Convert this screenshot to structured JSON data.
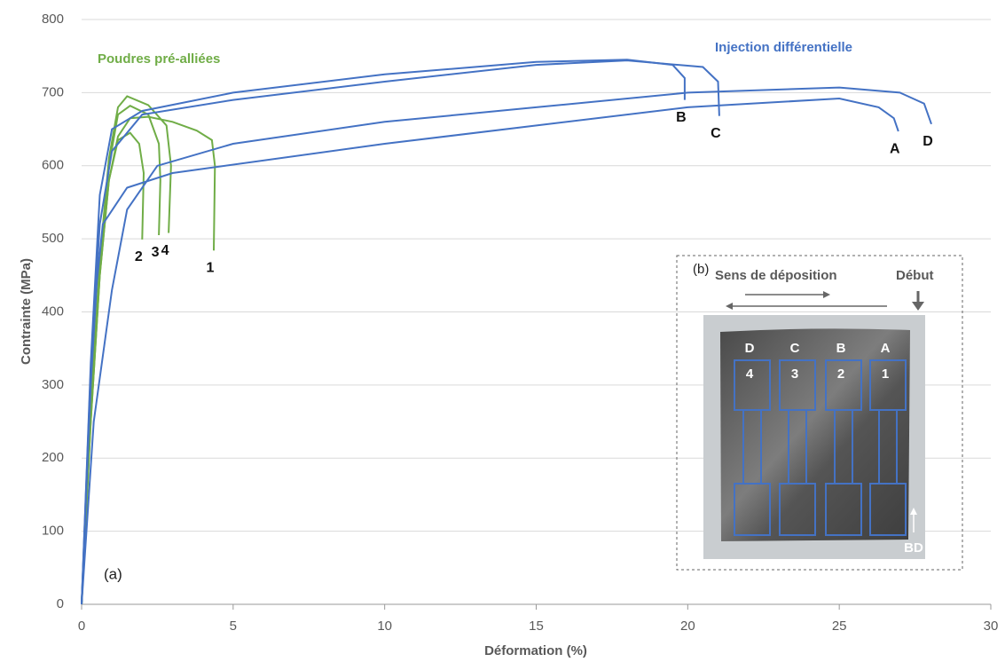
{
  "chart_data": {
    "type": "line",
    "panel_label": "(a)",
    "xlabel": "Déformation (%)",
    "ylabel": "Contrainte (MPa)",
    "xlim": [
      0,
      30
    ],
    "xticks": [
      0,
      5,
      10,
      15,
      20,
      25,
      30
    ],
    "ylim": [
      0,
      800
    ],
    "yticks": [
      0,
      100,
      200,
      300,
      400,
      500,
      600,
      700,
      800
    ],
    "grid": true,
    "annotations": [
      {
        "text": "Poudres pré-alliées",
        "color": "#70ad47"
      },
      {
        "text": "Injection différentielle",
        "color": "#4472c4"
      }
    ],
    "series": [
      {
        "name": "1",
        "color": "#70ad47",
        "x": [
          0,
          0.3,
          0.6,
          0.9,
          1.2,
          1.6,
          2.2,
          3,
          3.8,
          4.3,
          4.4,
          4.36
        ],
        "values": [
          0,
          250,
          450,
          580,
          640,
          665,
          667,
          660,
          648,
          635,
          600,
          484
        ]
      },
      {
        "name": "2",
        "color": "#70ad47",
        "x": [
          0,
          0.3,
          0.6,
          0.9,
          1.2,
          1.6,
          1.9,
          2.05,
          2.0
        ],
        "values": [
          0,
          250,
          450,
          580,
          635,
          645,
          630,
          590,
          499
        ]
      },
      {
        "name": "3",
        "color": "#70ad47",
        "x": [
          0,
          0.3,
          0.6,
          0.9,
          1.2,
          1.6,
          2.2,
          2.55,
          2.6,
          2.55
        ],
        "values": [
          0,
          260,
          460,
          600,
          670,
          682,
          670,
          630,
          580,
          505
        ]
      },
      {
        "name": "4",
        "color": "#70ad47",
        "x": [
          0,
          0.3,
          0.6,
          0.9,
          1.2,
          1.5,
          2.2,
          2.8,
          2.95,
          2.87
        ],
        "values": [
          0,
          270,
          470,
          610,
          680,
          695,
          683,
          655,
          600,
          508
        ]
      },
      {
        "name": "A",
        "color": "#4472c4",
        "x": [
          0,
          0.3,
          0.5,
          0.7,
          1.5,
          3,
          10,
          20,
          25,
          26.3,
          26.8,
          26.95
        ],
        "values": [
          0,
          300,
          440,
          520,
          570,
          590,
          630,
          680,
          692,
          680,
          665,
          647
        ]
      },
      {
        "name": "B",
        "color": "#4472c4",
        "x": [
          0,
          0.3,
          0.6,
          1,
          2,
          5,
          10,
          15,
          18,
          19.5,
          19.9,
          19.9
        ],
        "values": [
          0,
          330,
          560,
          650,
          675,
          700,
          725,
          742,
          745,
          738,
          720,
          690
        ]
      },
      {
        "name": "C",
        "color": "#4472c4",
        "x": [
          0,
          0.3,
          0.6,
          1,
          2,
          5,
          10,
          15,
          18,
          20.5,
          21,
          21.04
        ],
        "values": [
          0,
          320,
          520,
          620,
          670,
          690,
          715,
          738,
          744,
          735,
          715,
          668
        ]
      },
      {
        "name": "D",
        "color": "#4472c4",
        "x": [
          0,
          0.4,
          1,
          1.5,
          2.5,
          5,
          10,
          15,
          20,
          25,
          27,
          27.8,
          28.04
        ],
        "values": [
          0,
          250,
          430,
          540,
          600,
          630,
          660,
          680,
          700,
          707,
          700,
          685,
          657
        ]
      }
    ]
  },
  "inset": {
    "label": "(b)",
    "direction": "Sens de déposition",
    "start": "Début",
    "top_labels": [
      "D",
      "C",
      "B",
      "A"
    ],
    "numbers": [
      "4",
      "3",
      "2",
      "1"
    ],
    "build_direction": "BD"
  }
}
